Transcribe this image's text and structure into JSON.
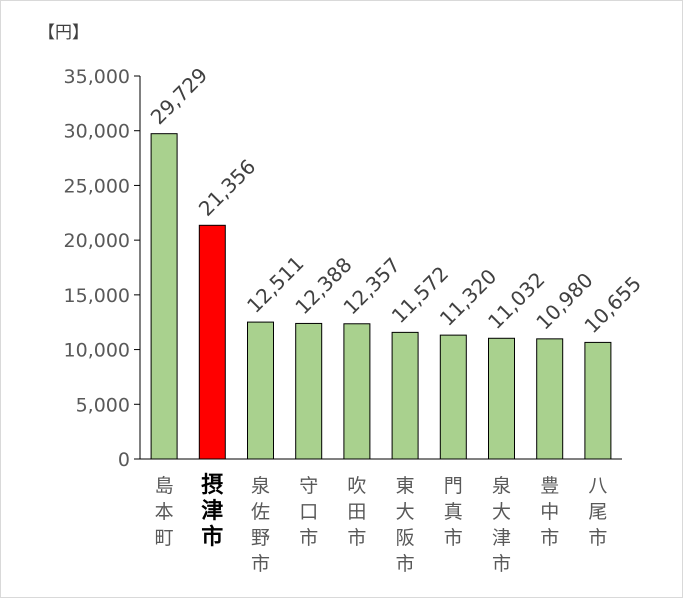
{
  "chart_data": {
    "type": "bar",
    "unit_label": "【円】",
    "categories": [
      "島本町",
      "摂津市",
      "泉佐野市",
      "守口市",
      "吹田市",
      "東大阪市",
      "門真市",
      "泉大津市",
      "豊中市",
      "八尾市"
    ],
    "values": [
      29729,
      21356,
      12511,
      12388,
      12357,
      11572,
      11320,
      11032,
      10980,
      10655
    ],
    "data_labels": [
      "29,729",
      "21,356",
      "12,511",
      "12,388",
      "12,357",
      "11,572",
      "11,320",
      "11,032",
      "10,980",
      "10,655"
    ],
    "highlight_index": 1,
    "ylim": [
      0,
      35000
    ],
    "yticks": [
      0,
      5000,
      10000,
      15000,
      20000,
      25000,
      30000,
      35000
    ],
    "ytick_labels": [
      "0",
      "5,000",
      "10,000",
      "15,000",
      "20,000",
      "25,000",
      "30,000",
      "35,000"
    ],
    "grid": false,
    "colors": {
      "bar": "#a9d18e",
      "highlight": "#ff0000",
      "bar_edge": "#000000",
      "axis": "#000000"
    }
  }
}
